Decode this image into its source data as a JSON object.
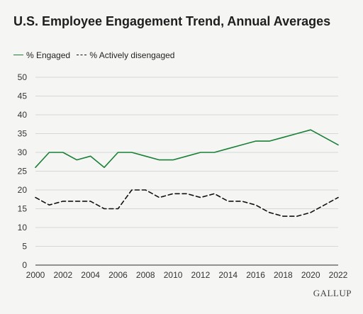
{
  "chart_data": {
    "type": "line",
    "title": "U.S. Employee Engagement Trend, Annual Averages",
    "xlabel": "",
    "ylabel": "",
    "x": [
      2000,
      2001,
      2002,
      2003,
      2004,
      2005,
      2006,
      2007,
      2008,
      2009,
      2010,
      2011,
      2012,
      2013,
      2014,
      2015,
      2016,
      2017,
      2018,
      2019,
      2020,
      2021,
      2022
    ],
    "xticks": [
      "2000",
      "2002",
      "2004",
      "2006",
      "2008",
      "2010",
      "2012",
      "2014",
      "2016",
      "2018",
      "2020",
      "2022"
    ],
    "yticks": [
      "0",
      "5",
      "10",
      "15",
      "20",
      "25",
      "30",
      "35",
      "40",
      "45",
      "50"
    ],
    "xlim": [
      2000,
      2022
    ],
    "ylim": [
      0,
      50
    ],
    "grid": true,
    "legend_position": "top-left",
    "series": [
      {
        "name": "% Engaged",
        "color": "#1a7f37",
        "style": "solid",
        "values": [
          26,
          30,
          30,
          28,
          29,
          26,
          30,
          30,
          29,
          28,
          28,
          29,
          30,
          30,
          31,
          32,
          33,
          33,
          34,
          35,
          36,
          34,
          32
        ]
      },
      {
        "name": "% Actively disengaged",
        "color": "#111111",
        "style": "dashed",
        "values": [
          18,
          16,
          17,
          17,
          17,
          15,
          15,
          20,
          20,
          18,
          19,
          19,
          18,
          19,
          17,
          17,
          16,
          14,
          13,
          13,
          14,
          16,
          18
        ]
      }
    ]
  },
  "brand": "GALLUP"
}
